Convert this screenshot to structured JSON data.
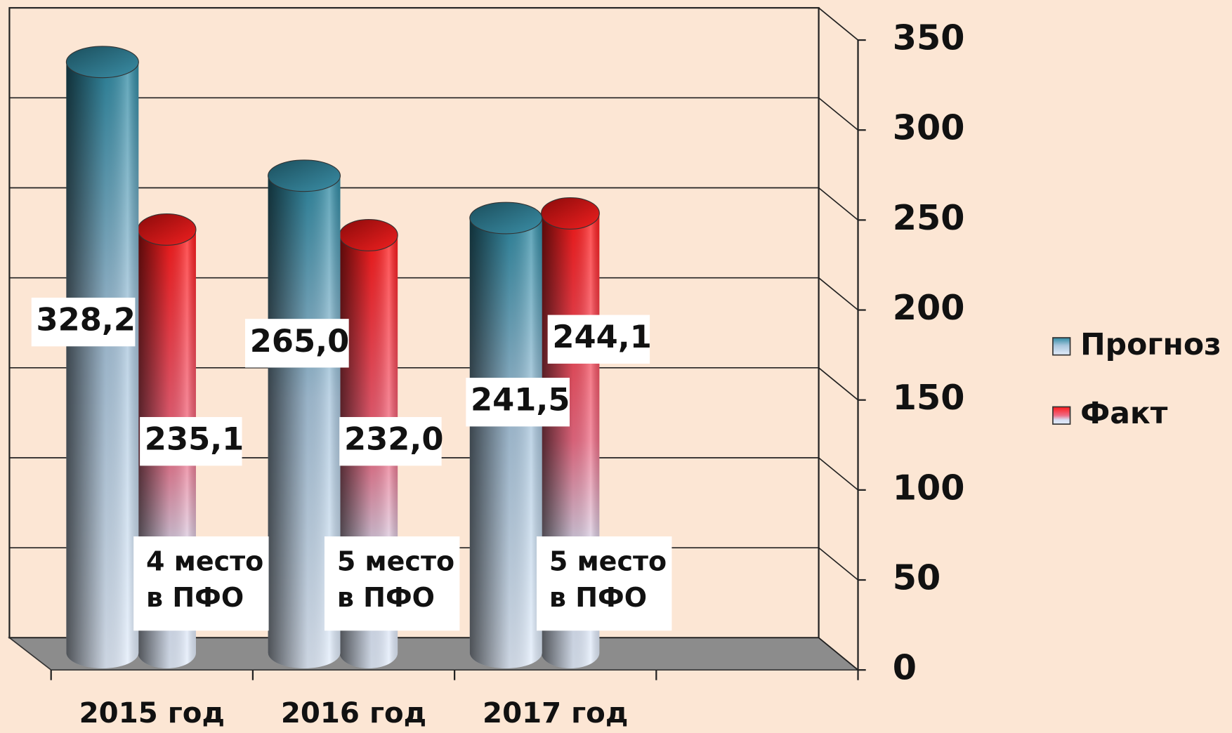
{
  "chart_data": {
    "type": "bar3d",
    "categories": [
      "2015 год",
      "2016 год",
      "2017 год",
      null
    ],
    "series": [
      {
        "name": "Прогноз",
        "color": "#2e8aa3",
        "values": [
          328.2,
          265.0,
          241.5,
          null
        ],
        "value_labels": [
          "328,2",
          "265,0",
          "241,5",
          null
        ]
      },
      {
        "name": "Факт",
        "color": "#ff1a1a",
        "values": [
          235.1,
          232.0,
          244.1,
          null
        ],
        "value_labels": [
          "235,1",
          "232,0",
          "244,1",
          null
        ]
      }
    ],
    "annotations": [
      [
        "4 место",
        "в ПФО"
      ],
      [
        "5 место",
        "в ПФО"
      ],
      [
        "5 место",
        "в ПФО"
      ]
    ],
    "ylim": [
      0,
      350
    ],
    "yticks": [
      0,
      50,
      100,
      150,
      200,
      250,
      300,
      350
    ],
    "grid": true,
    "legend": "right"
  }
}
